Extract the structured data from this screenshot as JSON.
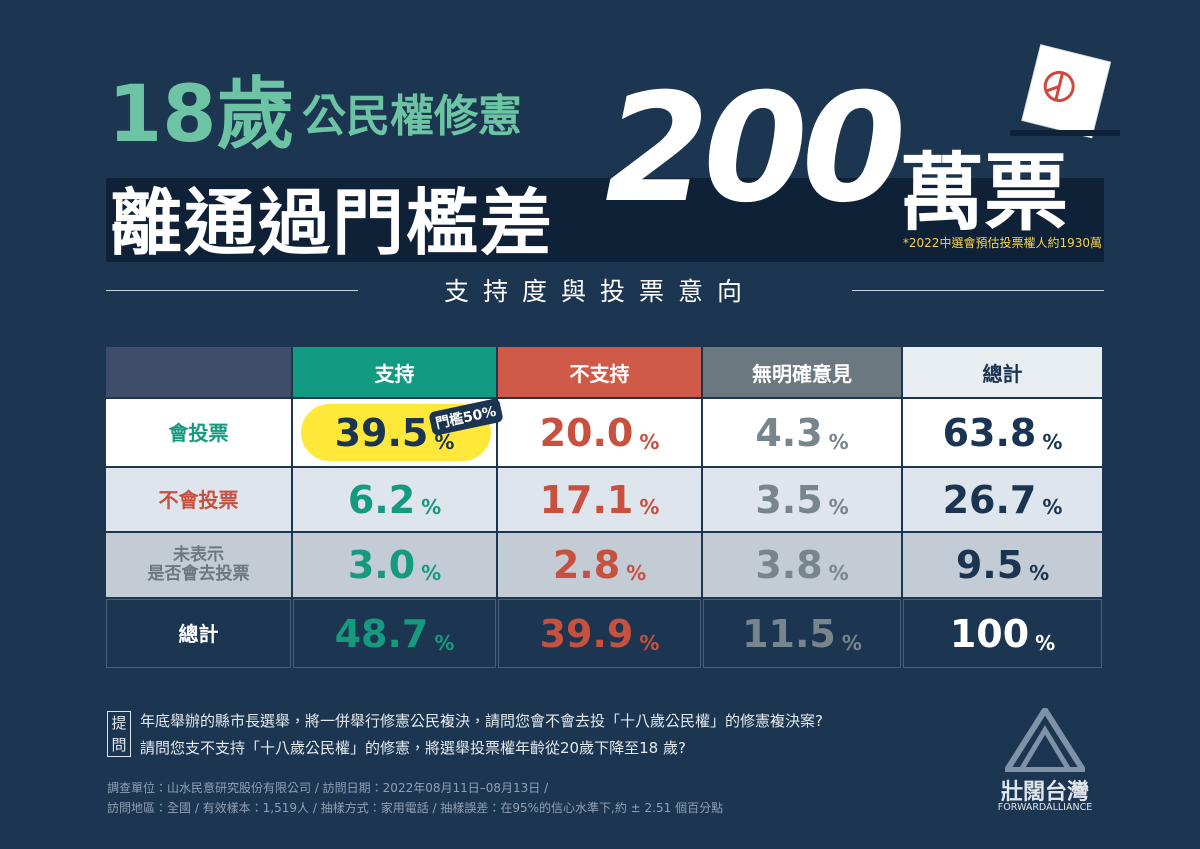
{
  "header": {
    "title_number": "18歲",
    "title_rest": "公民權修憲",
    "headline": "離通過門檻差",
    "headline_number": "200",
    "headline_unit": "萬票",
    "footnote": "*2022中選會預估投票權人約1930萬",
    "section_title": "支持度與投票意向"
  },
  "table": {
    "columns": [
      "支持",
      "不支持",
      "無明確意見",
      "總計"
    ],
    "unit": "%",
    "highlight_badge": "門檻50%",
    "rows": [
      {
        "label": [
          "會投票"
        ],
        "values": [
          "39.5",
          "20.0",
          "4.3",
          "63.8"
        ]
      },
      {
        "label": [
          "不會投票"
        ],
        "values": [
          "6.2",
          "17.1",
          "3.5",
          "26.7"
        ]
      },
      {
        "label": [
          "未表示",
          "是否會去投票"
        ],
        "values": [
          "3.0",
          "2.8",
          "3.8",
          "9.5"
        ]
      },
      {
        "label": [
          "總計"
        ],
        "values": [
          "48.7",
          "39.9",
          "11.5",
          "100"
        ]
      }
    ]
  },
  "question": {
    "label": [
      "提",
      "問"
    ],
    "lines": [
      "年底舉辦的縣市長選舉，將一併舉行修憲公民複決，請問您會不會去投「十八歲公民權」的修憲複決案?",
      "請問您支不支持「十八歲公民權」的修憲，將選舉投票權年齡從20歲下降至18 歲?"
    ]
  },
  "source": {
    "lines": [
      "調查單位：山水民意研究股份有限公司 / 訪問日期：2022年08月11日–08月13日 /",
      "訪問地區：全國 / 有效樣本：1,519人 / 抽樣方式：家用電話 / 抽樣誤差：在95%的信心水準下,約 ± 2.51 個百分點"
    ]
  },
  "logo": {
    "name": "壯闊台灣",
    "tagline": "FORWARDALLIANCE"
  }
}
